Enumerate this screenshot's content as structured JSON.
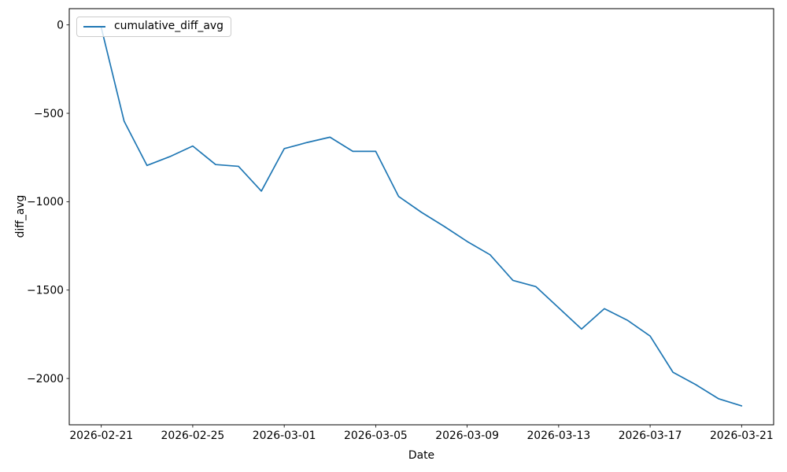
{
  "chart_data": {
    "type": "line",
    "xlabel": "Date",
    "ylabel": "diff_avg",
    "grid": false,
    "legend_position": "upper left",
    "line_color": "#1f77b4",
    "background_color": "#ffffff",
    "x": [
      "2026-02-21",
      "2026-02-22",
      "2026-02-23",
      "2026-02-24",
      "2026-02-25",
      "2026-02-26",
      "2026-02-27",
      "2026-02-28",
      "2026-03-01",
      "2026-03-02",
      "2026-03-03",
      "2026-03-04",
      "2026-03-05",
      "2026-03-06",
      "2026-03-07",
      "2026-03-08",
      "2026-03-09",
      "2026-03-10",
      "2026-03-11",
      "2026-03-12",
      "2026-03-13",
      "2026-03-14",
      "2026-03-15",
      "2026-03-16",
      "2026-03-17",
      "2026-03-18",
      "2026-03-19",
      "2026-03-20",
      "2026-03-21"
    ],
    "series": [
      {
        "name": "cumulative_diff_avg",
        "values": [
          -15,
          -545,
          -795,
          -745,
          -685,
          -790,
          -800,
          -940,
          -700,
          -665,
          -635,
          -715,
          -715,
          -970,
          -1060,
          -1140,
          -1225,
          -1300,
          -1445,
          -1480,
          -1600,
          -1720,
          -1605,
          -1670,
          -1760,
          -1965,
          -2035,
          -2115,
          -2155
        ]
      }
    ],
    "x_ticks": [
      {
        "day": 0,
        "label": "2026-02-21"
      },
      {
        "day": 4,
        "label": "2026-02-25"
      },
      {
        "day": 8,
        "label": "2026-03-01"
      },
      {
        "day": 12,
        "label": "2026-03-05"
      },
      {
        "day": 16,
        "label": "2026-03-09"
      },
      {
        "day": 20,
        "label": "2026-03-13"
      },
      {
        "day": 24,
        "label": "2026-03-17"
      },
      {
        "day": 28,
        "label": "2026-03-21"
      }
    ],
    "y_ticks": [
      {
        "value": 0,
        "label": "0"
      },
      {
        "value": -500,
        "label": "−500"
      },
      {
        "value": -1000,
        "label": "−1000"
      },
      {
        "value": -1500,
        "label": "−1500"
      },
      {
        "value": -2000,
        "label": "−2000"
      }
    ],
    "xlim_days": [
      -1.4,
      29.4
    ],
    "ylim": [
      -2262,
      92
    ]
  }
}
